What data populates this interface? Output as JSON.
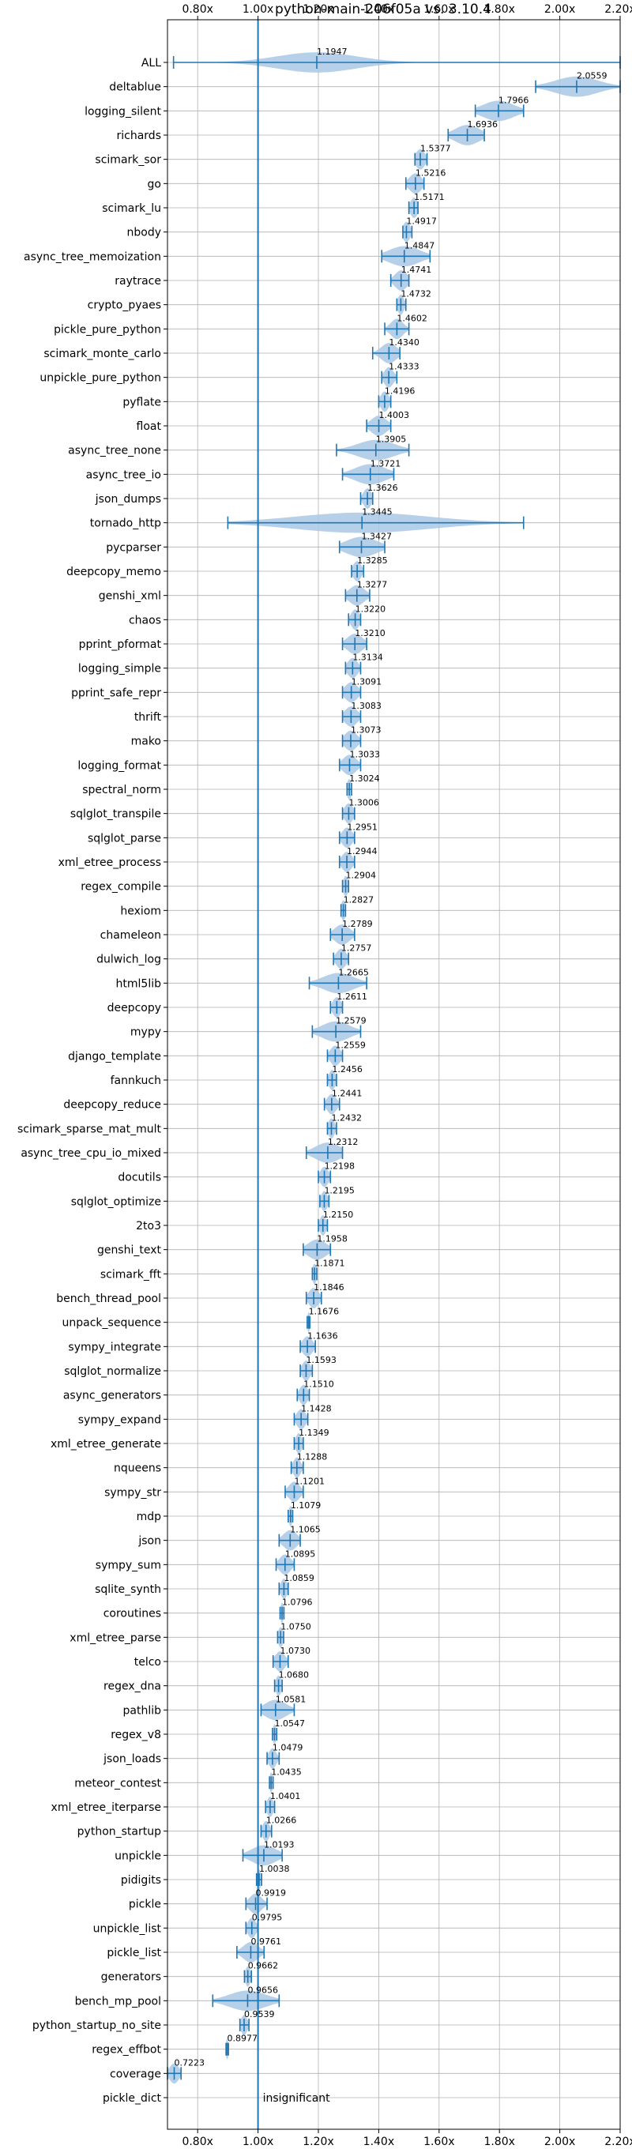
{
  "chart_data": {
    "type": "violin",
    "title": "python-main-206f05a vs. 3.10.4",
    "xlim": [
      0.7,
      2.2
    ],
    "x_ticks": [
      "0.80x",
      "1.00x",
      "1.20x",
      "1.40x",
      "1.60x",
      "1.80x",
      "2.00x",
      "2.20x"
    ],
    "x_tick_values": [
      0.8,
      1.0,
      1.2,
      1.4,
      1.6,
      1.8,
      2.0,
      2.2
    ],
    "reference_line": 1.0,
    "grid": true,
    "annotation": "insignificant",
    "colors": {
      "violin": "#a9c8e6",
      "line": "#1f77b4"
    },
    "benchmarks": [
      {
        "name": "ALL",
        "label": "1.1947",
        "value": 1.1947,
        "min": 0.72,
        "max": 2.2,
        "spread": 0.13
      },
      {
        "name": "deltablue",
        "label": "2.0559",
        "value": 2.0559,
        "min": 1.92,
        "max": 2.2,
        "spread": 0.07
      },
      {
        "name": "logging_silent",
        "label": "1.7966",
        "value": 1.7966,
        "min": 1.72,
        "max": 1.88,
        "spread": 0.05
      },
      {
        "name": "richards",
        "label": "1.6936",
        "value": 1.6936,
        "min": 1.63,
        "max": 1.75,
        "spread": 0.04
      },
      {
        "name": "scimark_sor",
        "label": "1.5377",
        "value": 1.5377,
        "min": 1.52,
        "max": 1.56,
        "spread": 0.015
      },
      {
        "name": "go",
        "label": "1.5216",
        "value": 1.5216,
        "min": 1.49,
        "max": 1.55,
        "spread": 0.02
      },
      {
        "name": "scimark_lu",
        "label": "1.5171",
        "value": 1.5171,
        "min": 1.5,
        "max": 1.53,
        "spread": 0.012
      },
      {
        "name": "nbody",
        "label": "1.4917",
        "value": 1.4917,
        "min": 1.48,
        "max": 1.51,
        "spread": 0.012
      },
      {
        "name": "async_tree_memoization",
        "label": "1.4847",
        "value": 1.4847,
        "min": 1.41,
        "max": 1.57,
        "spread": 0.05
      },
      {
        "name": "raytrace",
        "label": "1.4741",
        "value": 1.4741,
        "min": 1.44,
        "max": 1.5,
        "spread": 0.02
      },
      {
        "name": "crypto_pyaes",
        "label": "1.4732",
        "value": 1.4732,
        "min": 1.46,
        "max": 1.49,
        "spread": 0.01
      },
      {
        "name": "pickle_pure_python",
        "label": "1.4602",
        "value": 1.4602,
        "min": 1.42,
        "max": 1.5,
        "spread": 0.02
      },
      {
        "name": "scimark_monte_carlo",
        "label": "1.4340",
        "value": 1.434,
        "min": 1.38,
        "max": 1.47,
        "spread": 0.025
      },
      {
        "name": "unpickle_pure_python",
        "label": "1.4333",
        "value": 1.4333,
        "min": 1.41,
        "max": 1.46,
        "spread": 0.015
      },
      {
        "name": "pyflate",
        "label": "1.4196",
        "value": 1.4196,
        "min": 1.4,
        "max": 1.44,
        "spread": 0.013
      },
      {
        "name": "float",
        "label": "1.4003",
        "value": 1.4003,
        "min": 1.36,
        "max": 1.44,
        "spread": 0.025
      },
      {
        "name": "async_tree_none",
        "label": "1.3905",
        "value": 1.3905,
        "min": 1.26,
        "max": 1.5,
        "spread": 0.06
      },
      {
        "name": "async_tree_io",
        "label": "1.3721",
        "value": 1.3721,
        "min": 1.28,
        "max": 1.45,
        "spread": 0.05
      },
      {
        "name": "json_dumps",
        "label": "1.3626",
        "value": 1.3626,
        "min": 1.34,
        "max": 1.38,
        "spread": 0.013
      },
      {
        "name": "tornado_http",
        "label": "1.3445",
        "value": 1.3445,
        "min": 0.9,
        "max": 1.88,
        "spread": 0.22
      },
      {
        "name": "pycparser",
        "label": "1.3427",
        "value": 1.3427,
        "min": 1.27,
        "max": 1.42,
        "spread": 0.05
      },
      {
        "name": "deepcopy_memo",
        "label": "1.3285",
        "value": 1.3285,
        "min": 1.31,
        "max": 1.35,
        "spread": 0.013
      },
      {
        "name": "genshi_xml",
        "label": "1.3277",
        "value": 1.3277,
        "min": 1.29,
        "max": 1.37,
        "spread": 0.025
      },
      {
        "name": "chaos",
        "label": "1.3220",
        "value": 1.322,
        "min": 1.3,
        "max": 1.34,
        "spread": 0.013
      },
      {
        "name": "pprint_pformat",
        "label": "1.3210",
        "value": 1.321,
        "min": 1.28,
        "max": 1.36,
        "spread": 0.025
      },
      {
        "name": "logging_simple",
        "label": "1.3134",
        "value": 1.3134,
        "min": 1.29,
        "max": 1.34,
        "spread": 0.016
      },
      {
        "name": "pprint_safe_repr",
        "label": "1.3091",
        "value": 1.3091,
        "min": 1.28,
        "max": 1.34,
        "spread": 0.02
      },
      {
        "name": "thrift",
        "label": "1.3083",
        "value": 1.3083,
        "min": 1.28,
        "max": 1.34,
        "spread": 0.02
      },
      {
        "name": "mako",
        "label": "1.3073",
        "value": 1.3073,
        "min": 1.28,
        "max": 1.34,
        "spread": 0.02
      },
      {
        "name": "logging_format",
        "label": "1.3033",
        "value": 1.3033,
        "min": 1.27,
        "max": 1.34,
        "spread": 0.022
      },
      {
        "name": "spectral_norm",
        "label": "1.3024",
        "value": 1.3024,
        "min": 1.295,
        "max": 1.31,
        "spread": 0.008
      },
      {
        "name": "sqlglot_transpile",
        "label": "1.3006",
        "value": 1.3006,
        "min": 1.28,
        "max": 1.32,
        "spread": 0.014
      },
      {
        "name": "sqlglot_parse",
        "label": "1.2951",
        "value": 1.2951,
        "min": 1.27,
        "max": 1.32,
        "spread": 0.016
      },
      {
        "name": "xml_etree_process",
        "label": "1.2944",
        "value": 1.2944,
        "min": 1.27,
        "max": 1.32,
        "spread": 0.016
      },
      {
        "name": "regex_compile",
        "label": "1.2904",
        "value": 1.2904,
        "min": 1.28,
        "max": 1.3,
        "spread": 0.008
      },
      {
        "name": "hexiom",
        "label": "1.2827",
        "value": 1.2827,
        "min": 1.275,
        "max": 1.29,
        "spread": 0.007
      },
      {
        "name": "chameleon",
        "label": "1.2789",
        "value": 1.2789,
        "min": 1.24,
        "max": 1.32,
        "spread": 0.025
      },
      {
        "name": "dulwich_log",
        "label": "1.2757",
        "value": 1.2757,
        "min": 1.25,
        "max": 1.3,
        "spread": 0.016
      },
      {
        "name": "html5lib",
        "label": "1.2665",
        "value": 1.2665,
        "min": 1.17,
        "max": 1.36,
        "spread": 0.05
      },
      {
        "name": "deepcopy",
        "label": "1.2611",
        "value": 1.2611,
        "min": 1.24,
        "max": 1.28,
        "spread": 0.013
      },
      {
        "name": "mypy",
        "label": "1.2579",
        "value": 1.2579,
        "min": 1.18,
        "max": 1.34,
        "spread": 0.045
      },
      {
        "name": "django_template",
        "label": "1.2559",
        "value": 1.2559,
        "min": 1.23,
        "max": 1.28,
        "spread": 0.016
      },
      {
        "name": "fannkuch",
        "label": "1.2456",
        "value": 1.2456,
        "min": 1.23,
        "max": 1.26,
        "spread": 0.01
      },
      {
        "name": "deepcopy_reduce",
        "label": "1.2441",
        "value": 1.2441,
        "min": 1.22,
        "max": 1.27,
        "spread": 0.015
      },
      {
        "name": "scimark_sparse_mat_mult",
        "label": "1.2432",
        "value": 1.2432,
        "min": 1.23,
        "max": 1.26,
        "spread": 0.01
      },
      {
        "name": "async_tree_cpu_io_mixed",
        "label": "1.2312",
        "value": 1.2312,
        "min": 1.16,
        "max": 1.28,
        "spread": 0.04
      },
      {
        "name": "docutils",
        "label": "1.2198",
        "value": 1.2198,
        "min": 1.2,
        "max": 1.24,
        "spread": 0.013
      },
      {
        "name": "sqlglot_optimize",
        "label": "1.2195",
        "value": 1.2195,
        "min": 1.205,
        "max": 1.235,
        "spread": 0.01
      },
      {
        "name": "2to3",
        "label": "1.2150",
        "value": 1.215,
        "min": 1.2,
        "max": 1.23,
        "spread": 0.01
      },
      {
        "name": "genshi_text",
        "label": "1.1958",
        "value": 1.1958,
        "min": 1.15,
        "max": 1.24,
        "spread": 0.03
      },
      {
        "name": "scimark_fft",
        "label": "1.1871",
        "value": 1.1871,
        "min": 1.18,
        "max": 1.195,
        "spread": 0.007
      },
      {
        "name": "bench_thread_pool",
        "label": "1.1846",
        "value": 1.1846,
        "min": 1.16,
        "max": 1.21,
        "spread": 0.016
      },
      {
        "name": "unpack_sequence",
        "label": "1.1676",
        "value": 1.1676,
        "min": 1.163,
        "max": 1.172,
        "spread": 0.004
      },
      {
        "name": "sympy_integrate",
        "label": "1.1636",
        "value": 1.1636,
        "min": 1.14,
        "max": 1.19,
        "spread": 0.016
      },
      {
        "name": "sqlglot_normalize",
        "label": "1.1593",
        "value": 1.1593,
        "min": 1.14,
        "max": 1.18,
        "spread": 0.013
      },
      {
        "name": "async_generators",
        "label": "1.1510",
        "value": 1.151,
        "min": 1.13,
        "max": 1.17,
        "spread": 0.013
      },
      {
        "name": "sympy_expand",
        "label": "1.1428",
        "value": 1.1428,
        "min": 1.12,
        "max": 1.165,
        "spread": 0.014
      },
      {
        "name": "xml_etree_generate",
        "label": "1.1349",
        "value": 1.1349,
        "min": 1.12,
        "max": 1.15,
        "spread": 0.01
      },
      {
        "name": "nqueens",
        "label": "1.1288",
        "value": 1.1288,
        "min": 1.11,
        "max": 1.15,
        "spread": 0.012
      },
      {
        "name": "sympy_str",
        "label": "1.1201",
        "value": 1.1201,
        "min": 1.09,
        "max": 1.15,
        "spread": 0.018
      },
      {
        "name": "mdp",
        "label": "1.1079",
        "value": 1.1079,
        "min": 1.1,
        "max": 1.115,
        "spread": 0.006
      },
      {
        "name": "json",
        "label": "1.1065",
        "value": 1.1065,
        "min": 1.07,
        "max": 1.14,
        "spread": 0.022
      },
      {
        "name": "sympy_sum",
        "label": "1.0895",
        "value": 1.0895,
        "min": 1.06,
        "max": 1.12,
        "spread": 0.018
      },
      {
        "name": "sqlite_synth",
        "label": "1.0859",
        "value": 1.0859,
        "min": 1.07,
        "max": 1.1,
        "spread": 0.01
      },
      {
        "name": "coroutines",
        "label": "1.0796",
        "value": 1.0796,
        "min": 1.073,
        "max": 1.086,
        "spread": 0.005
      },
      {
        "name": "xml_etree_parse",
        "label": "1.0750",
        "value": 1.075,
        "min": 1.065,
        "max": 1.085,
        "spread": 0.008
      },
      {
        "name": "telco",
        "label": "1.0730",
        "value": 1.073,
        "min": 1.05,
        "max": 1.1,
        "spread": 0.016
      },
      {
        "name": "regex_dna",
        "label": "1.0680",
        "value": 1.068,
        "min": 1.055,
        "max": 1.08,
        "spread": 0.009
      },
      {
        "name": "pathlib",
        "label": "1.0581",
        "value": 1.0581,
        "min": 1.01,
        "max": 1.12,
        "spread": 0.035
      },
      {
        "name": "regex_v8",
        "label": "1.0547",
        "value": 1.0547,
        "min": 1.048,
        "max": 1.062,
        "spread": 0.005
      },
      {
        "name": "json_loads",
        "label": "1.0479",
        "value": 1.0479,
        "min": 1.03,
        "max": 1.07,
        "spread": 0.012
      },
      {
        "name": "meteor_contest",
        "label": "1.0435",
        "value": 1.0435,
        "min": 1.038,
        "max": 1.05,
        "spread": 0.005
      },
      {
        "name": "xml_etree_iterparse",
        "label": "1.0401",
        "value": 1.0401,
        "min": 1.025,
        "max": 1.055,
        "spread": 0.01
      },
      {
        "name": "python_startup",
        "label": "1.0266",
        "value": 1.0266,
        "min": 1.01,
        "max": 1.045,
        "spread": 0.011
      },
      {
        "name": "unpickle",
        "label": "1.0193",
        "value": 1.0193,
        "min": 0.95,
        "max": 1.08,
        "spread": 0.04
      },
      {
        "name": "pidigits",
        "label": "1.0038",
        "value": 1.0038,
        "min": 0.995,
        "max": 1.012,
        "spread": 0.006
      },
      {
        "name": "pickle",
        "label": "0.9919",
        "value": 0.9919,
        "min": 0.96,
        "max": 1.03,
        "spread": 0.02
      },
      {
        "name": "unpickle_list",
        "label": "0.9795",
        "value": 0.9795,
        "min": 0.96,
        "max": 1.0,
        "spread": 0.013
      },
      {
        "name": "pickle_list",
        "label": "0.9761",
        "value": 0.9761,
        "min": 0.93,
        "max": 1.02,
        "spread": 0.025
      },
      {
        "name": "generators",
        "label": "0.9662",
        "value": 0.9662,
        "min": 0.955,
        "max": 0.978,
        "spread": 0.008
      },
      {
        "name": "bench_mp_pool",
        "label": "0.9656",
        "value": 0.9656,
        "min": 0.85,
        "max": 1.07,
        "spread": 0.06
      },
      {
        "name": "python_startup_no_site",
        "label": "0.9539",
        "value": 0.9539,
        "min": 0.94,
        "max": 0.97,
        "spread": 0.01
      },
      {
        "name": "regex_effbot",
        "label": "0.8977",
        "value": 0.8977,
        "min": 0.894,
        "max": 0.902,
        "spread": 0.004
      },
      {
        "name": "coverage",
        "label": "0.7223",
        "value": 0.7223,
        "min": 0.7,
        "max": 0.745,
        "spread": 0.015
      },
      {
        "name": "pickle_dict",
        "label": "",
        "value": null,
        "min": null,
        "max": null,
        "spread": 0
      }
    ]
  }
}
